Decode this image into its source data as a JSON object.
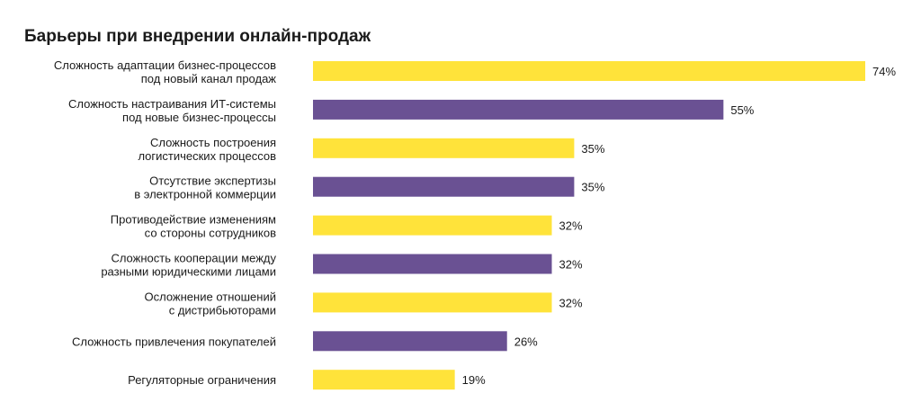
{
  "chart_data": {
    "type": "bar",
    "orientation": "horizontal",
    "title": "Барьеры при внедрении онлайн-продаж",
    "categories": [
      [
        "Сложность адаптации бизнес-процессов",
        "под новый канал продаж"
      ],
      [
        "Сложность настраивания ИТ-системы",
        "под новые бизнес-процессы"
      ],
      [
        "Сложность построения",
        "логистических процессов"
      ],
      [
        "Отсутствие экспертизы",
        "в электронной коммерции"
      ],
      [
        "Противодействие изменениям",
        "со стороны сотрудников"
      ],
      [
        "Сложность кооперации между",
        "разными юридическими лицами"
      ],
      [
        "Осложнение отношений",
        "с дистрибьюторами"
      ],
      [
        "Сложность привлечения покупателей"
      ],
      [
        "Регуляторные ограничения"
      ]
    ],
    "values": [
      74,
      55,
      35,
      35,
      32,
      32,
      32,
      26,
      19
    ],
    "value_labels": [
      "74%",
      "55%",
      "35%",
      "35%",
      "32%",
      "32%",
      "32%",
      "26%",
      "19%"
    ],
    "colors": [
      "#FFE33A",
      "#6A5193"
    ],
    "xlabel": "",
    "ylabel": "",
    "xlim": [
      0,
      74
    ],
    "grid": false
  }
}
